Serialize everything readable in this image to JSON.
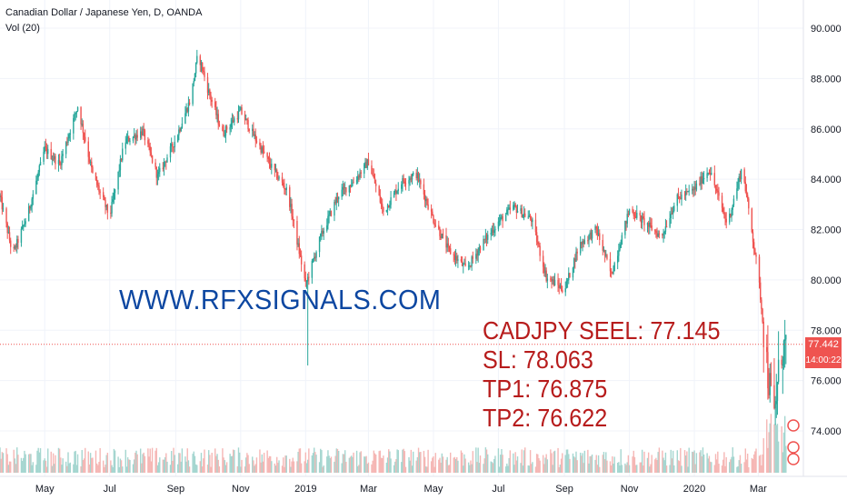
{
  "header": {
    "symbol_line": "Canadian Dollar / Japanese Yen, D, OANDA",
    "indicator_line": "Vol (20)"
  },
  "watermark": "WWW.RFXSIGNALS.COM",
  "signal": {
    "entry": "CADJPY SEEL: 77.145",
    "sl": "SL: 78.063",
    "tp1": "TP1: 76.875",
    "tp2": "TP2: 76.622"
  },
  "price_badge": "77.442",
  "timer_badge": "14:00:22",
  "colors": {
    "up": "#26a69a",
    "down": "#ef5350",
    "up_volume": "#a5d6d0",
    "down_volume": "#f5b7b5",
    "watermark": "#0d47a1",
    "signal_text": "#b71c1c",
    "grid": "#f0f3fa"
  },
  "chart_data": {
    "type": "candlestick",
    "title": "Canadian Dollar / Japanese Yen, D, OANDA",
    "y_ticks": [
      "74.000",
      "76.000",
      "78.000",
      "80.000",
      "82.000",
      "84.000",
      "86.000",
      "88.000",
      "90.000"
    ],
    "x_ticks": [
      "May",
      "Jul",
      "Sep",
      "Nov",
      "2019",
      "Mar",
      "May",
      "Jul",
      "Sep",
      "Nov",
      "2020",
      "Mar"
    ],
    "ylim": [
      72.5,
      90.8
    ],
    "last_price": 77.442,
    "grid": true,
    "price_path": [
      [
        "2018-03-20",
        83.3
      ],
      [
        "2018-04-01",
        81.0
      ],
      [
        "2018-04-15",
        82.6
      ],
      [
        "2018-05-01",
        85.2
      ],
      [
        "2018-05-15",
        84.6
      ],
      [
        "2018-06-01",
        86.9
      ],
      [
        "2018-06-15",
        84.2
      ],
      [
        "2018-07-01",
        82.5
      ],
      [
        "2018-07-15",
        85.5
      ],
      [
        "2018-08-01",
        85.9
      ],
      [
        "2018-08-15",
        84.1
      ],
      [
        "2018-09-01",
        85.6
      ],
      [
        "2018-09-15",
        87.2
      ],
      [
        "2018-09-22",
        89.0
      ],
      [
        "2018-10-01",
        87.6
      ],
      [
        "2018-10-15",
        85.8
      ],
      [
        "2018-11-01",
        86.7
      ],
      [
        "2018-11-15",
        85.6
      ],
      [
        "2018-12-01",
        84.4
      ],
      [
        "2018-12-15",
        83.5
      ],
      [
        "2019-01-01",
        79.8
      ],
      [
        "2019-01-15",
        81.7
      ],
      [
        "2019-02-01",
        83.4
      ],
      [
        "2019-02-15",
        83.9
      ],
      [
        "2019-03-01",
        84.7
      ],
      [
        "2019-03-15",
        82.7
      ],
      [
        "2019-04-01",
        83.9
      ],
      [
        "2019-04-15",
        84.2
      ],
      [
        "2019-05-01",
        82.4
      ],
      [
        "2019-05-15",
        81.2
      ],
      [
        "2019-06-01",
        80.4
      ],
      [
        "2019-06-15",
        81.4
      ],
      [
        "2019-07-01",
        82.3
      ],
      [
        "2019-07-15",
        82.9
      ],
      [
        "2019-08-01",
        82.4
      ],
      [
        "2019-08-15",
        80.1
      ],
      [
        "2019-09-01",
        79.6
      ],
      [
        "2019-09-15",
        81.4
      ],
      [
        "2019-10-01",
        82.0
      ],
      [
        "2019-10-15",
        80.2
      ],
      [
        "2019-11-01",
        82.8
      ],
      [
        "2019-11-15",
        82.3
      ],
      [
        "2019-12-01",
        81.7
      ],
      [
        "2019-12-15",
        83.2
      ],
      [
        "2020-01-01",
        83.6
      ],
      [
        "2020-01-15",
        84.4
      ],
      [
        "2020-02-01",
        82.2
      ],
      [
        "2020-02-15",
        84.5
      ],
      [
        "2020-03-01",
        80.2
      ],
      [
        "2020-03-10",
        76.3
      ],
      [
        "2020-03-16",
        74.5
      ],
      [
        "2020-03-22",
        77.1
      ],
      [
        "2020-03-28",
        77.442
      ]
    ],
    "annotations": [
      "CADJPY SEEL: 77.145",
      "SL: 78.063",
      "TP1: 76.875",
      "TP2: 76.622"
    ]
  }
}
